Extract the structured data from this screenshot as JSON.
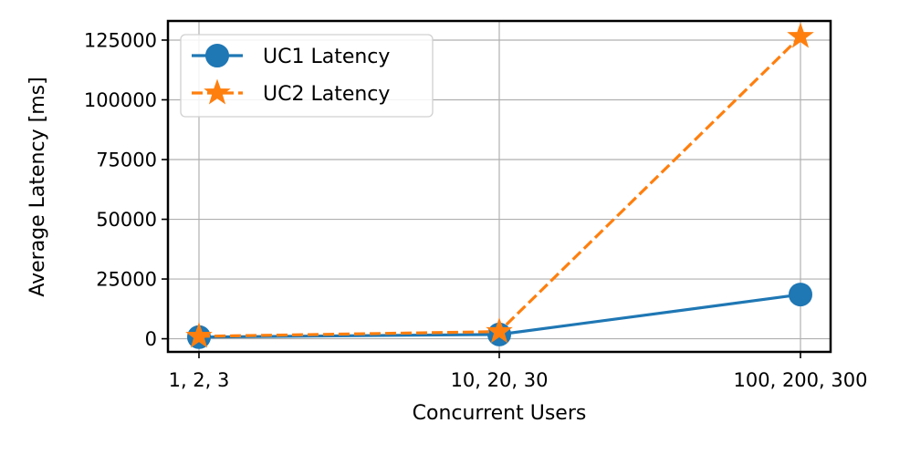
{
  "chart_data": {
    "type": "line",
    "title": "",
    "xlabel": "Concurrent Users",
    "ylabel": "Average Latency [ms]",
    "categories": [
      "1, 2, 3",
      "10, 20, 30",
      "100, 200, 300"
    ],
    "ylim": [
      -5500,
      133000
    ],
    "yticks": [
      0,
      25000,
      50000,
      75000,
      100000,
      125000
    ],
    "grid": true,
    "legend_position": "top-left",
    "series": [
      {
        "name": "UC1 Latency",
        "values": [
          700,
          1800,
          18500
        ],
        "color": "#1f77b4",
        "marker": "circle",
        "linestyle": "solid"
      },
      {
        "name": "UC2 Latency",
        "values": [
          1000,
          3000,
          126500
        ],
        "color": "#ff7f0e",
        "marker": "star",
        "linestyle": "dashed"
      }
    ]
  }
}
